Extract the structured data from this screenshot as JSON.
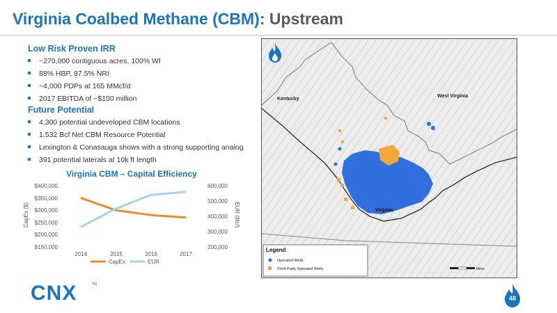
{
  "slide": {
    "title_main": "Virginia Coalbed Methane (CBM):",
    "title_accent": "Upstream",
    "page_number": "48"
  },
  "sections": [
    {
      "heading": "Low Risk Proven IRR",
      "bullets": [
        "~270,000 contiguous acres, 100% WI",
        "88% HBP, 87.5% NRI",
        "~4,000 PDPs at 165 MMcf/d",
        "2017 EBITDA of ~$100 million"
      ]
    },
    {
      "heading": "Future Potential",
      "bullets": [
        "4,300 potential undeveloped CBM locations",
        "1,532 Bcf Net CBM Resource Potential",
        "Lexington & Conasauga shows with a strong supporting analog",
        "391 potential laterals at 10k ft length"
      ]
    }
  ],
  "chart_data": {
    "type": "line",
    "title": "Virginia CBM – Capital Efficiency",
    "categories": [
      "2014",
      "2015",
      "2016",
      "2017"
    ],
    "series": [
      {
        "name": "CapEx",
        "axis": "left",
        "color": "#f08a24",
        "values": [
          350000,
          300000,
          280000,
          270000
        ]
      },
      {
        "name": "EUR",
        "axis": "right",
        "color": "#a8d4e6",
        "values": [
          330000,
          450000,
          540000,
          560000
        ]
      }
    ],
    "ylabel": "CapEx ($)",
    "y2label": "EUR (Mcf)",
    "ylim": [
      150000,
      400000
    ],
    "y2lim": [
      200000,
      600000
    ],
    "yticks": [
      "$400,000",
      "$350,000",
      "$300,000",
      "$250,000",
      "$200,000",
      "$150,000"
    ],
    "y2ticks": [
      "600,000",
      "500,000",
      "400,000",
      "300,000",
      "200,000"
    ],
    "legend_position": "bottom"
  },
  "map": {
    "state_labels": [
      "Kentucky",
      "West Virginia",
      "Virginia"
    ],
    "legend_title": "Legend",
    "legend_items": [
      {
        "label": "Operated Wells",
        "color": "#2f6fde"
      },
      {
        "label": "Third Party Operated Wells",
        "color": "#f2a93b"
      }
    ],
    "scale_label": "Miles"
  },
  "logo": {
    "text": "CNX",
    "tm": "TM"
  },
  "colors": {
    "brand": "#1b75bb",
    "capex": "#f08a24",
    "eur": "#a8d4e6"
  }
}
